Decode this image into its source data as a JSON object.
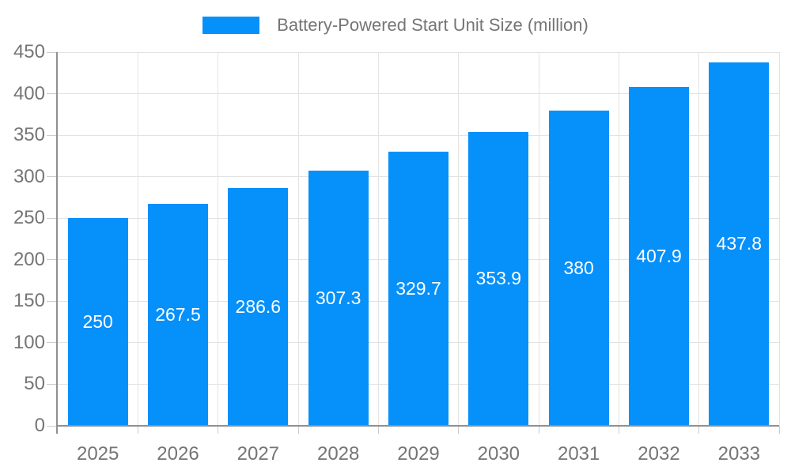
{
  "legend": {
    "label": "Battery-Powered Start Unit Size (million)"
  },
  "colors": {
    "bar": "#0590fa",
    "bar_label": "#ffffff",
    "axis_text": "#757575",
    "axis_line": "#909090",
    "gridline": "#e3e3e3",
    "tick": "#cccccc",
    "background": "#ffffff"
  },
  "chart_data": {
    "type": "bar",
    "title": "",
    "series_name": "Battery-Powered Start Unit Size (million)",
    "categories": [
      "2025",
      "2026",
      "2027",
      "2028",
      "2029",
      "2030",
      "2031",
      "2032",
      "2033"
    ],
    "values": [
      250,
      267.5,
      286.6,
      307.3,
      329.7,
      353.9,
      380,
      407.9,
      437.8
    ],
    "xlabel": "",
    "ylabel": "",
    "ylim": [
      0,
      450
    ],
    "ytick_step": 50,
    "grid": true,
    "legend_position": "top",
    "value_labels": "inside-center"
  }
}
